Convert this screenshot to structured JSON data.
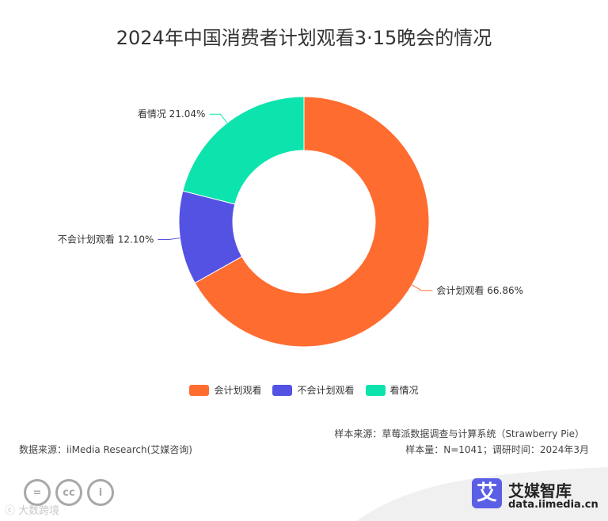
{
  "title": "2024年中国消费者计划观看3·15晚会的情况",
  "chart_data": {
    "type": "pie",
    "donut": true,
    "categories": [
      "会计划观看",
      "不会计划观看",
      "看情况"
    ],
    "values": [
      66.86,
      12.1,
      21.04
    ],
    "unit": "%",
    "colors": [
      "#ff6c2f",
      "#5352e3",
      "#0de4ad"
    ],
    "data_labels": [
      "会计划观看 66.86%",
      "不会计划观看 12.10%",
      "看情况 21.04%"
    ],
    "legend_position": "bottom"
  },
  "footer": {
    "sample_source": "样本来源：草莓派数据调查与计算系统（Strawberry Pie）",
    "data_source": "数据来源：iiMedia Research(艾媒咨询)",
    "sample_info": "样本量：N=1041；调研时间：2024年3月"
  },
  "license_icons": [
    "equals-icon",
    "cc-icon",
    "person-icon"
  ],
  "license_glyphs": [
    "=",
    "cc",
    "i"
  ],
  "watermark": "ⓒ 大数跨境",
  "brand": {
    "logo_char": "艾",
    "name": "艾媒智库",
    "url": "data.iimedia.cn"
  }
}
